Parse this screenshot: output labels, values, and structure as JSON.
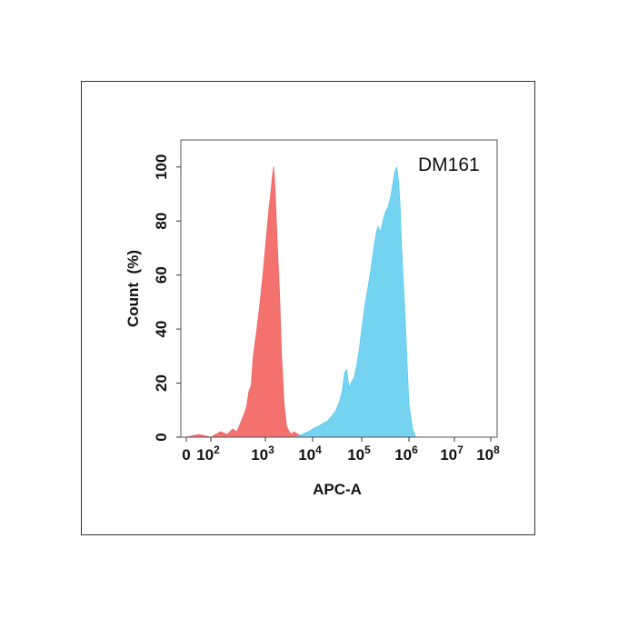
{
  "chart_data": {
    "type": "area",
    "title": "",
    "annotation": "DM161",
    "xlabel": "APC-A",
    "ylabel": "Count  (%)",
    "x_scale": "biexponential",
    "xlim": [
      0,
      100000000
    ],
    "ylim": [
      0,
      110
    ],
    "x_tick_values": [
      0,
      100,
      1000,
      10000,
      100000,
      1000000,
      10000000,
      100000000
    ],
    "x_tick_labels": [
      {
        "base": "0",
        "exp": ""
      },
      {
        "base": "10",
        "exp": "2"
      },
      {
        "base": "10",
        "exp": "3"
      },
      {
        "base": "10",
        "exp": "4"
      },
      {
        "base": "10",
        "exp": "5"
      },
      {
        "base": "10",
        "exp": "6"
      },
      {
        "base": "10",
        "exp": "7"
      },
      {
        "base": "10",
        "exp": "8"
      }
    ],
    "y_ticks": [
      0,
      20,
      40,
      60,
      80,
      100
    ],
    "grid": false,
    "series": [
      {
        "color": "#f2625f",
        "x": [
          0,
          50,
          100,
          150,
          200,
          250,
          300,
          400,
          450,
          500,
          550,
          600,
          700,
          800,
          900,
          1000,
          1100,
          1200,
          1300,
          1400,
          1500,
          1600,
          1800,
          2000,
          2200,
          2500,
          2800,
          3200,
          3600,
          4000,
          5000,
          6000
        ],
        "y": [
          0,
          1,
          0,
          2,
          1,
          3,
          2,
          8,
          11,
          17,
          19,
          30,
          40,
          50,
          60,
          70,
          78,
          85,
          90,
          96,
          100,
          92,
          70,
          52,
          30,
          12,
          4,
          2,
          1,
          2,
          1,
          0
        ]
      },
      {
        "color": "#5ccbef",
        "x": [
          4000,
          6000,
          8000,
          10000,
          13000,
          16000,
          20000,
          25000,
          30000,
          35000,
          40000,
          45000,
          50000,
          55000,
          60000,
          70000,
          80000,
          90000,
          100000,
          120000,
          150000,
          180000,
          200000,
          220000,
          250000,
          280000,
          300000,
          330000,
          360000,
          400000,
          450000,
          500000,
          550000,
          600000,
          650000,
          700000,
          800000,
          900000,
          1000000,
          1200000,
          1400000
        ],
        "y": [
          0,
          1,
          2,
          3,
          4,
          5,
          6,
          8,
          10,
          13,
          17,
          24,
          25,
          18,
          20,
          22,
          27,
          33,
          40,
          50,
          60,
          70,
          75,
          78,
          76,
          80,
          82,
          84,
          85,
          88,
          93,
          98,
          100,
          95,
          85,
          70,
          50,
          30,
          12,
          3,
          0
        ]
      }
    ]
  }
}
